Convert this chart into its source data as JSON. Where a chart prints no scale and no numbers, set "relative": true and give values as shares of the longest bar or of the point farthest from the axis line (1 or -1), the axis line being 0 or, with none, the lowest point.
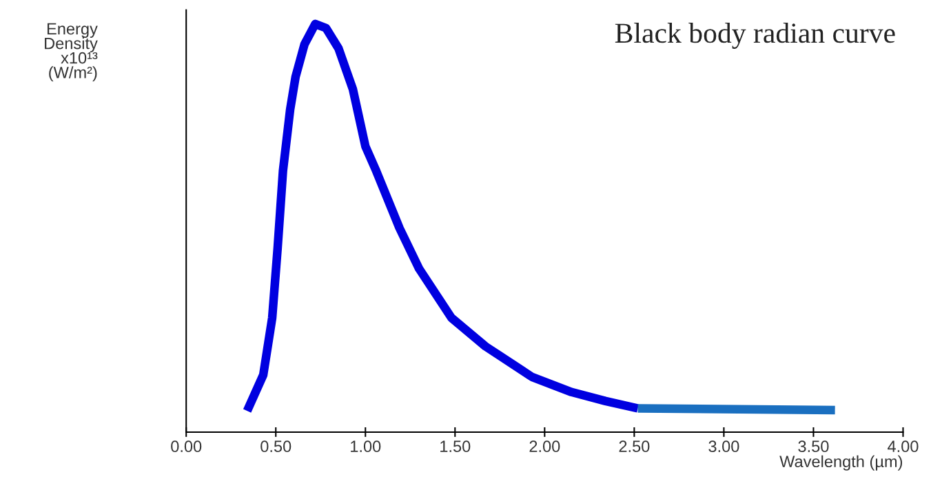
{
  "chart_data": {
    "type": "line",
    "title": "Black body radian curve",
    "xlabel": "Wavelength (µm)",
    "ylabel": "Energy\nDensity\nx10¹³\n(W/m²)",
    "relative": true,
    "xlim": [
      0,
      4
    ],
    "xticks": [
      {
        "value": 0,
        "label": "0.00"
      },
      {
        "value": 0.5,
        "label": "0.50"
      },
      {
        "value": 1,
        "label": "1.00"
      },
      {
        "value": 1.5,
        "label": "1.50"
      },
      {
        "value": 2,
        "label": "2.00"
      },
      {
        "value": 2.5,
        "label": "2.50"
      },
      {
        "value": 3,
        "label": "3.00"
      },
      {
        "value": 3.5,
        "label": "3.50"
      },
      {
        "value": 4,
        "label": "4.00"
      }
    ],
    "grid": false,
    "legend": false,
    "marker": "none",
    "line_style": "solid",
    "series": [
      {
        "color": "#0000e0",
        "x": [
          0.34,
          0.43,
          0.48,
          0.51,
          0.54,
          0.58,
          0.61,
          0.66,
          0.72,
          0.78,
          0.85,
          0.93,
          1.0,
          1.06,
          1.19,
          1.3,
          1.48,
          1.67,
          1.93,
          2.15,
          2.34,
          2.52
        ],
        "values": [
          0.052,
          0.14,
          0.28,
          0.45,
          0.64,
          0.79,
          0.87,
          0.95,
          1.0,
          0.99,
          0.94,
          0.84,
          0.7,
          0.64,
          0.5,
          0.4,
          0.28,
          0.21,
          0.135,
          0.098,
          0.076,
          0.058
        ]
      },
      {
        "color": "#1a6fc0",
        "x": [
          2.52,
          3.62
        ],
        "values": [
          0.058,
          0.054
        ]
      }
    ]
  }
}
